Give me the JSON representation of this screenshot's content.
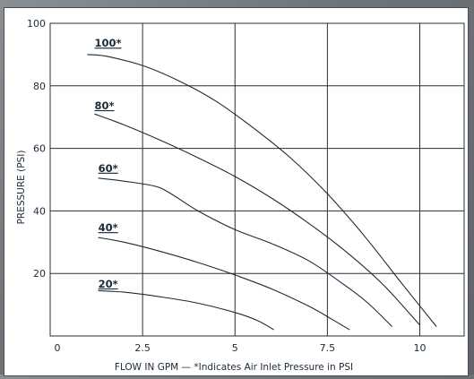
{
  "chart_data": {
    "type": "line",
    "title": "",
    "xlabel": "FLOW IN GPM — *Indicates Air Inlet Pressure in PSI",
    "ylabel": "PRESSURE (PSI)",
    "xlim": [
      0,
      11.2
    ],
    "ylim": [
      0,
      100
    ],
    "x_ticks": [
      {
        "value": 0,
        "label": "0"
      },
      {
        "value": 2.5,
        "label": "2.5"
      },
      {
        "value": 5,
        "label": "5"
      },
      {
        "value": 7.5,
        "label": "7.5"
      },
      {
        "value": 10,
        "label": "10"
      }
    ],
    "y_ticks": [
      {
        "value": 0,
        "label": ""
      },
      {
        "value": 20,
        "label": "20"
      },
      {
        "value": 40,
        "label": "40"
      },
      {
        "value": 60,
        "label": "60"
      },
      {
        "value": 80,
        "label": "80"
      },
      {
        "value": 100,
        "label": "100"
      }
    ],
    "grid": true,
    "series": [
      {
        "name": "100*",
        "label_at": [
          1.2,
          92.5
        ],
        "points": [
          [
            1.0,
            90.0
          ],
          [
            1.5,
            89.5
          ],
          [
            2.5,
            86.5
          ],
          [
            3.5,
            81.5
          ],
          [
            4.5,
            75.0
          ],
          [
            5.5,
            66.5
          ],
          [
            6.5,
            57.0
          ],
          [
            7.5,
            45.5
          ],
          [
            8.5,
            32.0
          ],
          [
            9.5,
            17.0
          ],
          [
            10.45,
            3.0
          ]
        ]
      },
      {
        "name": "80*",
        "label_at": [
          1.2,
          72.5
        ],
        "points": [
          [
            1.2,
            71.0
          ],
          [
            2.0,
            67.5
          ],
          [
            3.0,
            62.5
          ],
          [
            4.0,
            57.0
          ],
          [
            5.0,
            51.0
          ],
          [
            6.0,
            44.0
          ],
          [
            7.0,
            36.0
          ],
          [
            8.0,
            27.0
          ],
          [
            9.0,
            16.5
          ],
          [
            10.0,
            3.5
          ]
        ]
      },
      {
        "name": "60*",
        "label_at": [
          1.3,
          52.5
        ],
        "points": [
          [
            1.3,
            50.5
          ],
          [
            2.0,
            49.5
          ],
          [
            2.8,
            48.0
          ],
          [
            3.2,
            46.0
          ],
          [
            4.0,
            40.0
          ],
          [
            5.0,
            34.0
          ],
          [
            6.0,
            29.5
          ],
          [
            7.0,
            24.0
          ],
          [
            8.0,
            16.0
          ],
          [
            8.6,
            10.5
          ],
          [
            9.25,
            3.0
          ]
        ]
      },
      {
        "name": "40*",
        "label_at": [
          1.3,
          33.5
        ],
        "points": [
          [
            1.3,
            31.5
          ],
          [
            2.0,
            30.0
          ],
          [
            3.0,
            27.0
          ],
          [
            4.0,
            23.5
          ],
          [
            5.0,
            19.5
          ],
          [
            6.0,
            15.0
          ],
          [
            7.0,
            9.5
          ],
          [
            7.6,
            5.5
          ],
          [
            8.1,
            2.0
          ]
        ]
      },
      {
        "name": "20*",
        "label_at": [
          1.3,
          15.5
        ],
        "points": [
          [
            1.3,
            14.5
          ],
          [
            2.0,
            14.0
          ],
          [
            3.0,
            12.5
          ],
          [
            4.0,
            10.5
          ],
          [
            5.0,
            7.5
          ],
          [
            5.6,
            5.0
          ],
          [
            6.05,
            2.0
          ]
        ]
      }
    ],
    "colors": {
      "curve": "#1b2a3a",
      "grid": "#2b2f33",
      "text": "#1b2a3a",
      "frame": "#5f6469"
    }
  }
}
